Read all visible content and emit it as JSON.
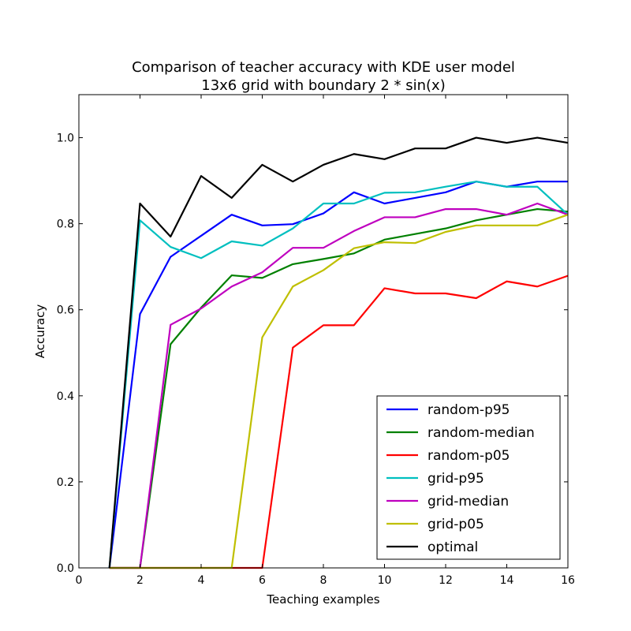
{
  "chart_data": {
    "type": "line",
    "title_lines": [
      "Comparison of teacher accuracy with KDE user model",
      "13x6 grid with boundary 2 * sin(x)"
    ],
    "xlabel": "Teaching examples",
    "ylabel": "Accuracy",
    "xlim": [
      0,
      16
    ],
    "ylim": [
      0,
      1.1
    ],
    "xticks": [
      0,
      2,
      4,
      6,
      8,
      10,
      12,
      14,
      16
    ],
    "yticks": [
      0.0,
      0.2,
      0.4,
      0.6,
      0.8,
      1.0
    ],
    "xtick_labels": [
      "0",
      "2",
      "4",
      "6",
      "8",
      "10",
      "12",
      "14",
      "16"
    ],
    "ytick_labels": [
      "0.0",
      "0.2",
      "0.4",
      "0.6",
      "0.8",
      "1.0"
    ],
    "grid": false,
    "legend_position": "lower-right",
    "x": [
      1,
      2,
      3,
      4,
      5,
      6,
      7,
      8,
      9,
      10,
      11,
      12,
      13,
      14,
      15,
      16
    ],
    "series": [
      {
        "name": "random-p95",
        "color": "#0000ff",
        "values": [
          0.0,
          0.59,
          0.723,
          0.772,
          0.821,
          0.796,
          0.799,
          0.824,
          0.873,
          0.847,
          0.86,
          0.873,
          0.898,
          0.886,
          0.898,
          0.898
        ]
      },
      {
        "name": "random-median",
        "color": "#008000",
        "values": [
          0.0,
          0.0,
          0.52,
          0.605,
          0.68,
          0.674,
          0.706,
          0.718,
          0.731,
          0.763,
          0.776,
          0.789,
          0.808,
          0.821,
          0.834,
          0.828
        ]
      },
      {
        "name": "random-p05",
        "color": "#ff0000",
        "values": [
          0.0,
          0.0,
          0.0,
          0.0,
          0.0,
          0.0,
          0.512,
          0.564,
          0.564,
          0.65,
          0.638,
          0.638,
          0.627,
          0.666,
          0.654,
          0.679
        ]
      },
      {
        "name": "grid-p95",
        "color": "#00bfbf",
        "values": [
          0.0,
          0.808,
          0.746,
          0.72,
          0.759,
          0.749,
          0.789,
          0.847,
          0.847,
          0.872,
          0.873,
          0.886,
          0.898,
          0.886,
          0.886,
          0.821
        ]
      },
      {
        "name": "grid-median",
        "color": "#bf00bf",
        "values": [
          0.0,
          0.0,
          0.565,
          0.603,
          0.654,
          0.687,
          0.744,
          0.744,
          0.783,
          0.815,
          0.815,
          0.834,
          0.834,
          0.821,
          0.847,
          0.821
        ]
      },
      {
        "name": "grid-p05",
        "color": "#bfbf00",
        "values": [
          0.0,
          0.0,
          0.0,
          0.0,
          0.0,
          0.536,
          0.654,
          0.692,
          0.743,
          0.757,
          0.755,
          0.781,
          0.796,
          0.796,
          0.796,
          0.821
        ]
      },
      {
        "name": "optimal",
        "color": "#000000",
        "values": [
          0.0,
          0.847,
          0.77,
          0.911,
          0.86,
          0.937,
          0.898,
          0.937,
          0.962,
          0.95,
          0.975,
          0.975,
          1.0,
          0.988,
          1.0,
          0.988
        ]
      }
    ]
  }
}
